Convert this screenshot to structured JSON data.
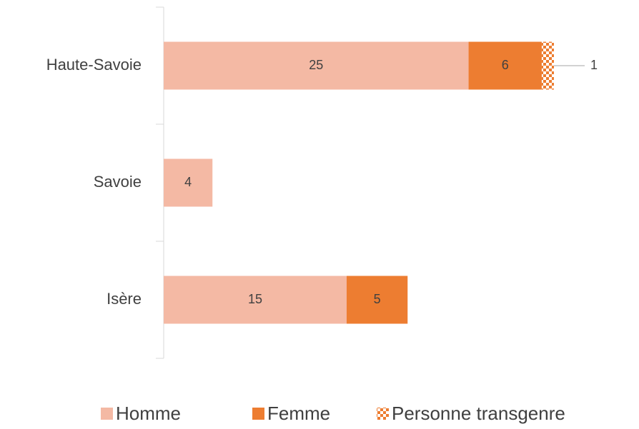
{
  "chart_data": {
    "type": "stacked-bar-horizontal",
    "categories": [
      "Haute-Savoie",
      "Savoie",
      "Isère"
    ],
    "series": [
      {
        "name": "Homme",
        "color": "#f4b9a4",
        "values": [
          25,
          4,
          15
        ]
      },
      {
        "name": "Femme",
        "color": "#ed7d31",
        "values": [
          6,
          null,
          5
        ]
      },
      {
        "name": "Personne transgenre",
        "color": "#ed7d31",
        "pattern": "checker",
        "values": [
          1,
          null,
          null
        ]
      }
    ],
    "legend": "bottom"
  }
}
